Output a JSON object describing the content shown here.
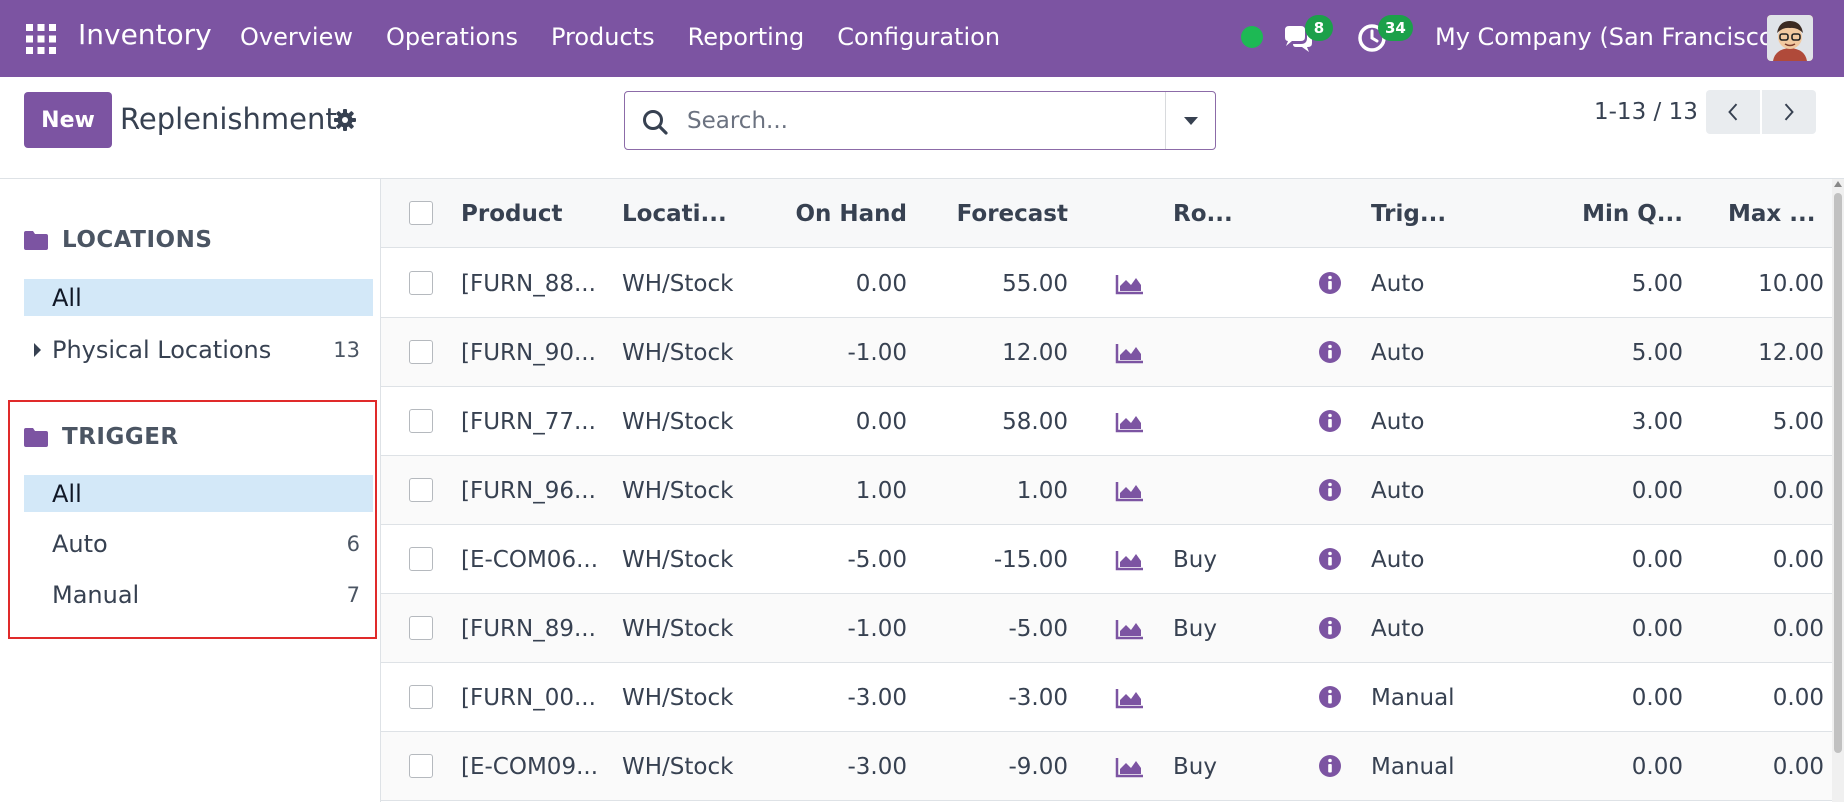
{
  "navbar": {
    "app_name": "Inventory",
    "menu": [
      "Overview",
      "Operations",
      "Products",
      "Reporting",
      "Configuration"
    ],
    "messages_count": "8",
    "activities_count": "34",
    "company": "My Company (San Francisco)",
    "bg_color": "#7c54a2"
  },
  "control_panel": {
    "new_label": "New",
    "title": "Replenishment",
    "search_placeholder": "Search...",
    "pager": "1-13 / 13"
  },
  "side_panel": {
    "locations": {
      "title": "LOCATIONS",
      "all_label": "All",
      "items": [
        {
          "label": "Physical Locations",
          "count": "13"
        }
      ]
    },
    "trigger": {
      "title": "TRIGGER",
      "all_label": "All",
      "items": [
        {
          "label": "Auto",
          "count": "6"
        },
        {
          "label": "Manual",
          "count": "7"
        }
      ]
    }
  },
  "list": {
    "columns": {
      "product": "Product",
      "location": "Locati...",
      "on_hand": "On Hand",
      "forecast": "Forecast",
      "route": "Ro...",
      "trigger": "Trig...",
      "min_qty": "Min Q...",
      "max_qty": "Max ..."
    },
    "rows": [
      {
        "product": "[FURN_88...",
        "location": "WH/Stock",
        "on_hand": "0.00",
        "forecast": "55.00",
        "route": "",
        "trigger": "Auto",
        "min_qty": "5.00",
        "max_qty": "10.00"
      },
      {
        "product": "[FURN_90...",
        "location": "WH/Stock",
        "on_hand": "-1.00",
        "forecast": "12.00",
        "route": "",
        "trigger": "Auto",
        "min_qty": "5.00",
        "max_qty": "12.00"
      },
      {
        "product": "[FURN_77...",
        "location": "WH/Stock",
        "on_hand": "0.00",
        "forecast": "58.00",
        "route": "",
        "trigger": "Auto",
        "min_qty": "3.00",
        "max_qty": "5.00"
      },
      {
        "product": "[FURN_96...",
        "location": "WH/Stock",
        "on_hand": "1.00",
        "forecast": "1.00",
        "route": "",
        "trigger": "Auto",
        "min_qty": "0.00",
        "max_qty": "0.00"
      },
      {
        "product": "[E-COM06...",
        "location": "WH/Stock",
        "on_hand": "-5.00",
        "forecast": "-15.00",
        "route": "Buy",
        "trigger": "Auto",
        "min_qty": "0.00",
        "max_qty": "0.00"
      },
      {
        "product": "[FURN_89...",
        "location": "WH/Stock",
        "on_hand": "-1.00",
        "forecast": "-5.00",
        "route": "Buy",
        "trigger": "Auto",
        "min_qty": "0.00",
        "max_qty": "0.00"
      },
      {
        "product": "[FURN_00...",
        "location": "WH/Stock",
        "on_hand": "-3.00",
        "forecast": "-3.00",
        "route": "",
        "trigger": "Manual",
        "min_qty": "0.00",
        "max_qty": "0.00"
      },
      {
        "product": "[E-COM09...",
        "location": "WH/Stock",
        "on_hand": "-3.00",
        "forecast": "-9.00",
        "route": "Buy",
        "trigger": "Manual",
        "min_qty": "0.00",
        "max_qty": "0.00"
      }
    ]
  }
}
